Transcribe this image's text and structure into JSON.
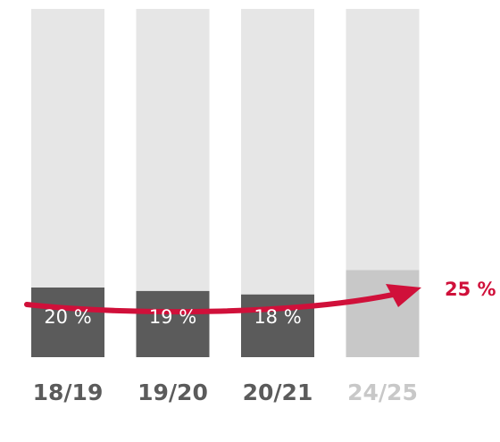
{
  "chart_data": {
    "type": "bar",
    "categories": [
      "18/19",
      "19/20",
      "20/21",
      "24/25"
    ],
    "values": [
      20,
      19,
      18,
      25
    ],
    "value_labels": [
      "20 %",
      "19 %",
      "18 %",
      "25 %"
    ],
    "colors": [
      "#5b5b5b",
      "#5b5b5b",
      "#5b5b5b",
      "#c8c8c8"
    ],
    "category_colors": [
      "#5b5b5b",
      "#5b5b5b",
      "#5b5b5b",
      "#c8c8c8"
    ],
    "background_color": "#e6e6e6",
    "target_color": "#d0103a",
    "ylim": [
      0,
      100
    ]
  }
}
